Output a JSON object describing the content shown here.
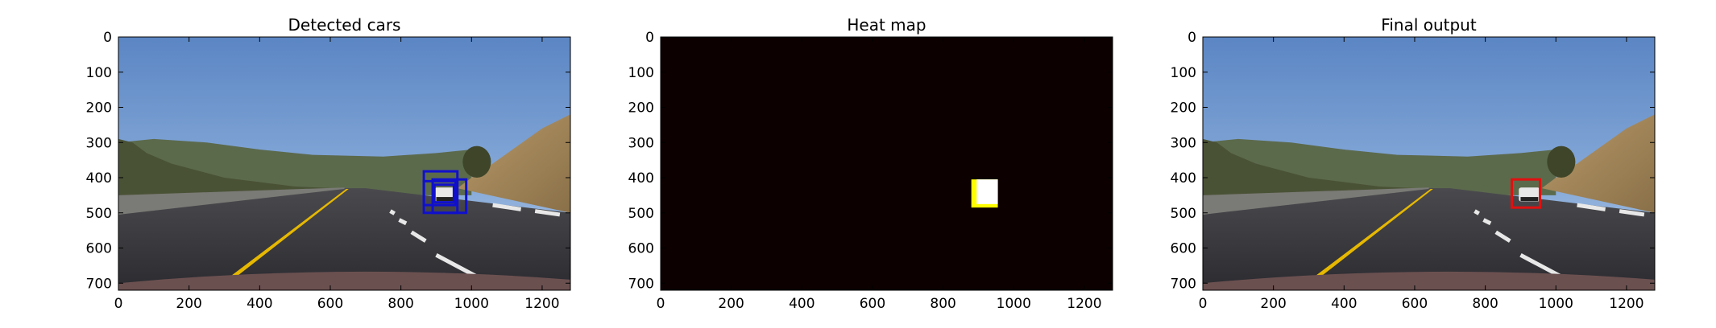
{
  "chart_data": [
    {
      "type": "image",
      "title": "Detected cars",
      "xlim": [
        0,
        1280
      ],
      "ylim": [
        720,
        0
      ],
      "xticks": [
        0,
        200,
        400,
        600,
        800,
        1000,
        1200
      ],
      "yticks": [
        0,
        100,
        200,
        300,
        400,
        500,
        600,
        700
      ],
      "boxes": [
        {
          "x0": 865,
          "y0": 382,
          "x1": 960,
          "y1": 500,
          "color": "#1010cc"
        },
        {
          "x0": 890,
          "y0": 405,
          "x1": 985,
          "y1": 500,
          "color": "#1010cc"
        },
        {
          "x0": 865,
          "y0": 410,
          "x1": 955,
          "y1": 478,
          "color": "#1010cc"
        },
        {
          "x0": 895,
          "y0": 420,
          "x1": 950,
          "y1": 470,
          "color": "#1010cc"
        }
      ]
    },
    {
      "type": "heatmap",
      "title": "Heat map",
      "xlim": [
        0,
        1280
      ],
      "ylim": [
        720,
        0
      ],
      "xticks": [
        0,
        200,
        400,
        600,
        800,
        1000,
        1200
      ],
      "yticks": [
        0,
        100,
        200,
        300,
        400,
        500,
        600,
        700
      ],
      "background": "#0c0000",
      "hot_regions": [
        {
          "x0": 880,
          "y0": 405,
          "x1": 955,
          "y1": 485,
          "color": "#ffff00"
        },
        {
          "x0": 895,
          "y0": 405,
          "x1": 955,
          "y1": 475,
          "color": "#ffffff"
        }
      ]
    },
    {
      "type": "image",
      "title": "Final output",
      "xlim": [
        0,
        1280
      ],
      "ylim": [
        720,
        0
      ],
      "xticks": [
        0,
        200,
        400,
        600,
        800,
        1000,
        1200
      ],
      "yticks": [
        0,
        100,
        200,
        300,
        400,
        500,
        600,
        700
      ],
      "boxes": [
        {
          "x0": 875,
          "y0": 405,
          "x1": 955,
          "y1": 485,
          "color": "#e01010"
        }
      ]
    }
  ]
}
